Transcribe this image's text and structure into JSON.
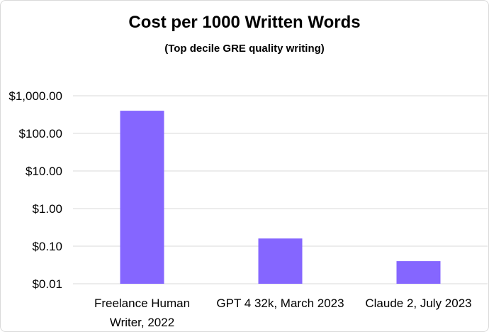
{
  "chart_data": {
    "type": "bar",
    "title": "Cost per 1000 Written Words",
    "subtitle": "(Top decile GRE quality writing)",
    "xlabel": "",
    "ylabel": "",
    "yscale": "log",
    "ylim": [
      0.01,
      1000
    ],
    "grid": true,
    "legend": "none",
    "yticks": [
      0.01,
      0.1,
      1,
      10,
      100,
      1000
    ],
    "ytick_labels": [
      "$0.01",
      "$0.10",
      "$1.00",
      "$10.00",
      "$100.00",
      "$1,000.00"
    ],
    "categories": [
      [
        "Freelance Human",
        "Writer, 2022"
      ],
      [
        "GPT 4 32k, March 2023"
      ],
      [
        "Claude 2, July 2023"
      ]
    ],
    "values": [
      400,
      0.16,
      0.04
    ],
    "bar_color": "#8566ff",
    "grid_color": "#d9d9d9"
  }
}
